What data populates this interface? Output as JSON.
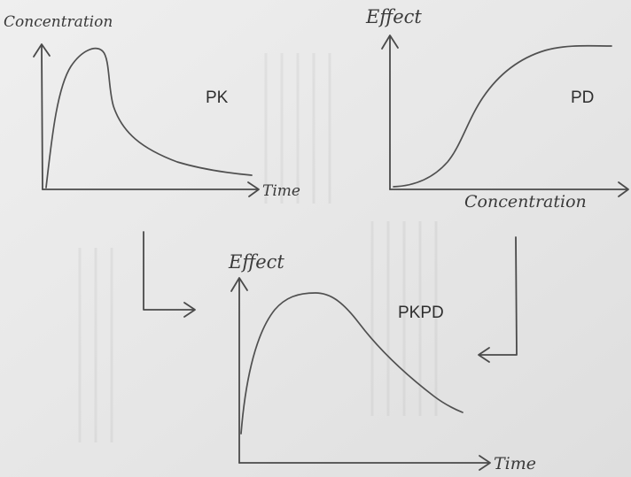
{
  "pk_panel": {
    "title": "PK",
    "y_axis_label": "Concentration",
    "x_axis_label": "Time"
  },
  "pd_panel": {
    "title": "PD",
    "y_axis_label": "Effect",
    "x_axis_label": "Concentration"
  },
  "pkpd_panel": {
    "title": "PKPD",
    "y_axis_label": "Effect",
    "x_axis_label": "Time"
  }
}
